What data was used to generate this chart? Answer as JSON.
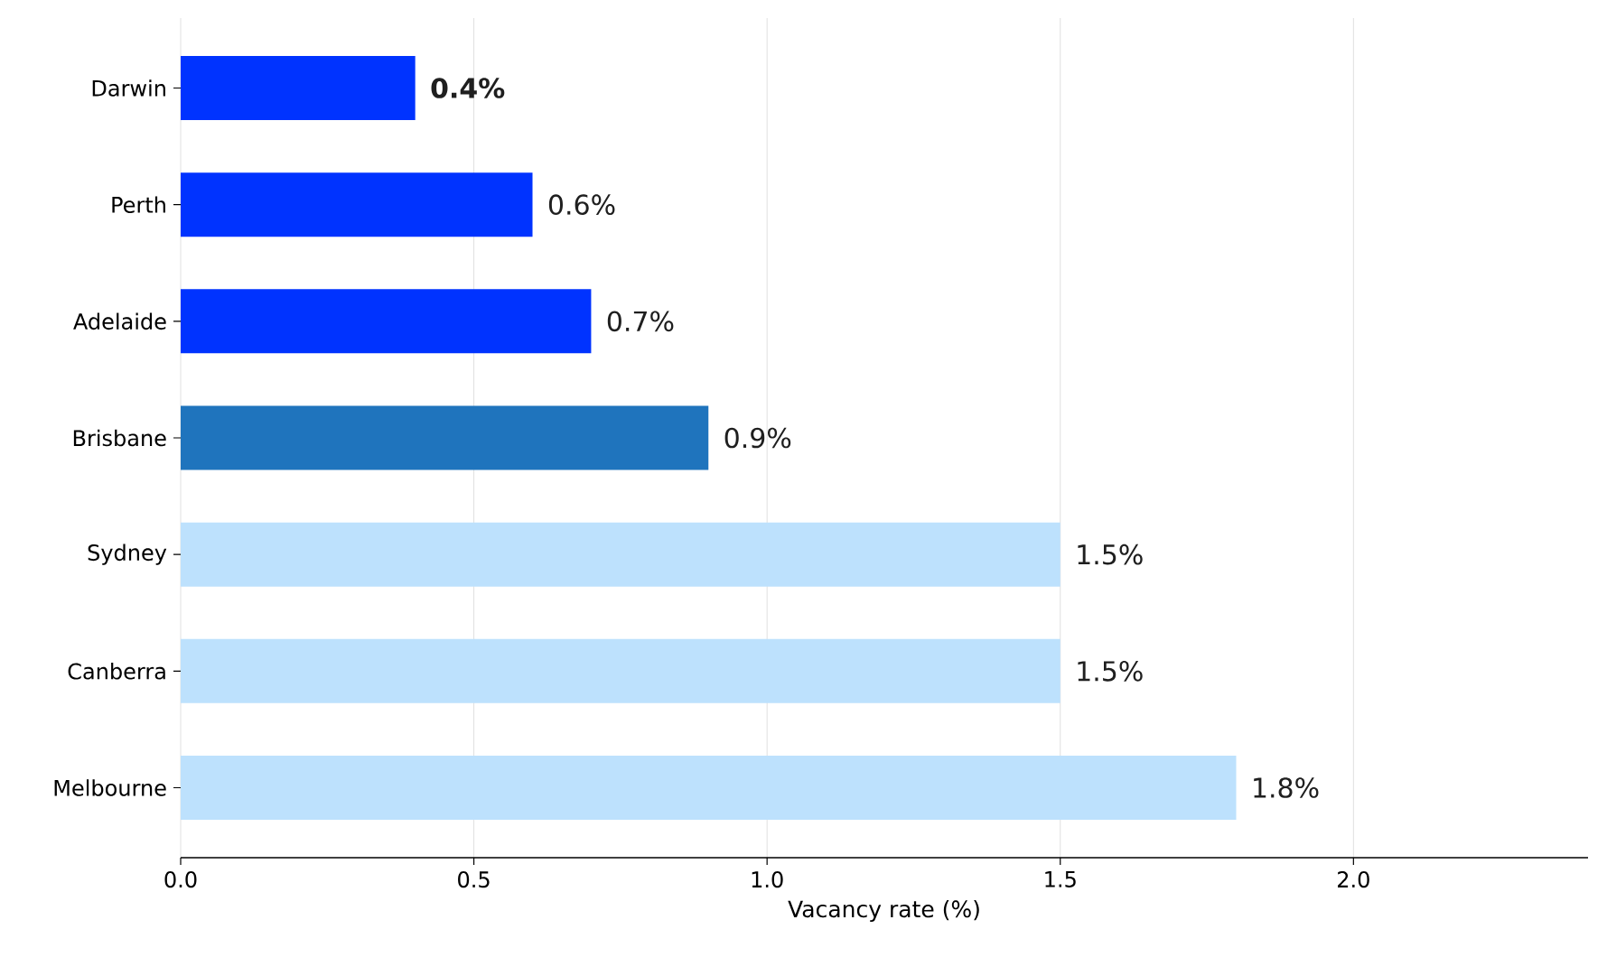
{
  "chart_data": {
    "type": "bar",
    "orientation": "horizontal",
    "xlabel": "Vacancy rate (%)",
    "categories": [
      "Darwin",
      "Perth",
      "Adelaide",
      "Brisbane",
      "Sydney",
      "Canberra",
      "Melbourne"
    ],
    "values": [
      0.4,
      0.6,
      0.7,
      0.9,
      1.5,
      1.5,
      1.8
    ],
    "colors": [
      "#0033ff",
      "#0033ff",
      "#0033ff",
      "#1f74bd",
      "#bde1fd",
      "#bde1fd",
      "#bde1fd"
    ],
    "value_labels": [
      "**0.4%**",
      "0.6%",
      "0.7%",
      "0.9%",
      "1.5%",
      "1.5%",
      "1.8%"
    ],
    "xlim": [
      0,
      2.4
    ],
    "xticks": [
      {
        "value": 0,
        "label": "0.0"
      },
      0.5,
      {
        "value": 1,
        "label": "1.0"
      },
      1.5,
      {
        "value": 2,
        "label": "2.0"
      }
    ],
    "grid": "x"
  }
}
